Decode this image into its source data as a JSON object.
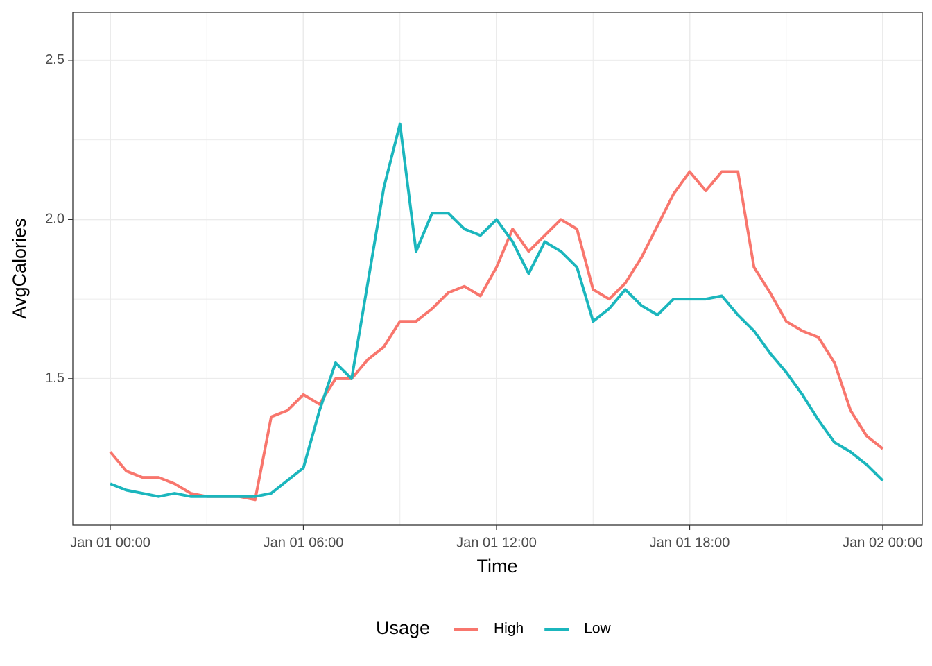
{
  "chart_data": {
    "type": "line",
    "x_label": "Time",
    "y_label": "AvgCalories",
    "legend_title": "Usage",
    "legend_position": "bottom",
    "grid": true,
    "x": [
      "Jan 01 00:00",
      "Jan 01 00:30",
      "Jan 01 01:00",
      "Jan 01 01:30",
      "Jan 01 02:00",
      "Jan 01 02:30",
      "Jan 01 03:00",
      "Jan 01 03:30",
      "Jan 01 04:00",
      "Jan 01 04:30",
      "Jan 01 05:00",
      "Jan 01 05:30",
      "Jan 01 06:00",
      "Jan 01 06:30",
      "Jan 01 07:00",
      "Jan 01 07:30",
      "Jan 01 08:00",
      "Jan 01 08:30",
      "Jan 01 09:00",
      "Jan 01 09:30",
      "Jan 01 10:00",
      "Jan 01 10:30",
      "Jan 01 11:00",
      "Jan 01 11:30",
      "Jan 01 12:00",
      "Jan 01 12:30",
      "Jan 01 13:00",
      "Jan 01 13:30",
      "Jan 01 14:00",
      "Jan 01 14:30",
      "Jan 01 15:00",
      "Jan 01 15:30",
      "Jan 01 16:00",
      "Jan 01 16:30",
      "Jan 01 17:00",
      "Jan 01 17:30",
      "Jan 01 18:00",
      "Jan 01 18:30",
      "Jan 01 19:00",
      "Jan 01 19:30",
      "Jan 01 20:00",
      "Jan 01 20:30",
      "Jan 01 21:00",
      "Jan 01 21:30",
      "Jan 01 22:00",
      "Jan 01 22:30",
      "Jan 01 23:00",
      "Jan 01 23:30",
      "Jan 02 00:00"
    ],
    "series": [
      {
        "name": "High",
        "color": "#f8766d",
        "values": [
          1.27,
          1.21,
          1.19,
          1.19,
          1.17,
          1.14,
          1.13,
          1.13,
          1.13,
          1.12,
          1.38,
          1.4,
          1.45,
          1.42,
          1.5,
          1.5,
          1.56,
          1.6,
          1.68,
          1.68,
          1.72,
          1.77,
          1.79,
          1.76,
          1.85,
          1.97,
          1.9,
          1.95,
          2.0,
          1.97,
          1.78,
          1.75,
          1.8,
          1.88,
          1.98,
          2.08,
          2.15,
          2.09,
          2.15,
          2.15,
          1.85,
          1.77,
          1.68,
          1.65,
          1.63,
          1.55,
          1.4,
          1.32,
          1.28
        ]
      },
      {
        "name": "Low",
        "color": "#1bb6bd",
        "values": [
          1.17,
          1.15,
          1.14,
          1.13,
          1.14,
          1.13,
          1.13,
          1.13,
          1.13,
          1.13,
          1.14,
          1.18,
          1.22,
          1.4,
          1.55,
          1.5,
          1.8,
          2.1,
          2.3,
          1.9,
          2.02,
          2.02,
          1.97,
          1.95,
          2.0,
          1.93,
          1.83,
          1.93,
          1.9,
          1.85,
          1.68,
          1.72,
          1.78,
          1.73,
          1.7,
          1.75,
          1.75,
          1.75,
          1.76,
          1.7,
          1.65,
          1.58,
          1.52,
          1.45,
          1.37,
          1.3,
          1.27,
          1.23,
          1.18
        ]
      }
    ],
    "xlim": [
      "Jan 01 00:00",
      "Jan 02 00:00"
    ],
    "xticks": [
      "Jan 01 00:00",
      "Jan 01 06:00",
      "Jan 01 12:00",
      "Jan 01 18:00",
      "Jan 02 00:00"
    ],
    "ylim": [
      1.04,
      2.65
    ],
    "yticks": [
      {
        "value": 1.5,
        "label": "1.5"
      },
      {
        "value": 2,
        "label": "2.0"
      },
      2.5
    ]
  }
}
